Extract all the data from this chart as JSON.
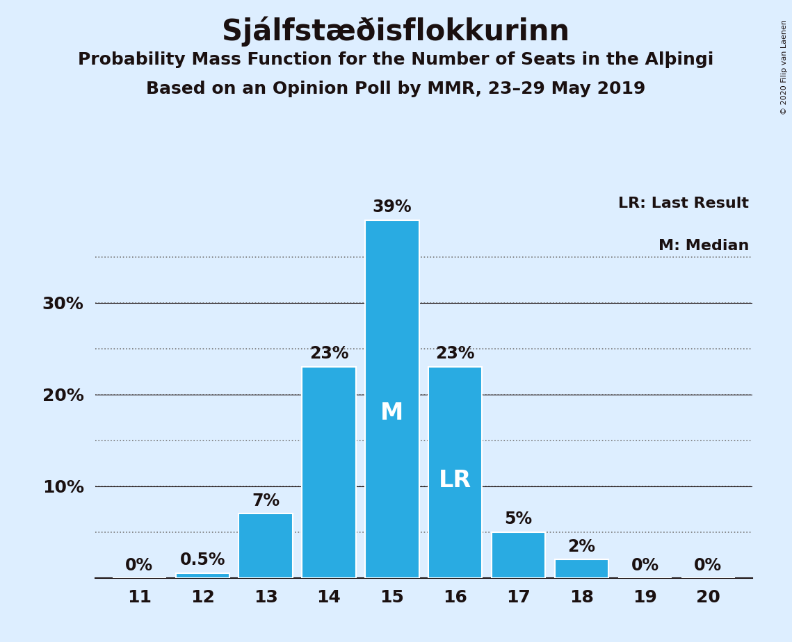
{
  "title": "Sjálfstæðisflokkurinn",
  "subtitle1": "Probability Mass Function for the Number of Seats in the Alþingi",
  "subtitle2": "Based on an Opinion Poll by MMR, 23–29 May 2019",
  "copyright": "© 2020 Filip van Laenen",
  "seats": [
    11,
    12,
    13,
    14,
    15,
    16,
    17,
    18,
    19,
    20
  ],
  "values": [
    0.0,
    0.5,
    7.0,
    23.0,
    39.0,
    23.0,
    5.0,
    2.0,
    0.0,
    0.0
  ],
  "labels": [
    "0%",
    "0.5%",
    "7%",
    "23%",
    "39%",
    "23%",
    "5%",
    "2%",
    "0%",
    "0%"
  ],
  "bar_color": "#29ABE2",
  "background_color": "#DDEEFF",
  "bar_edge_color": "#FFFFFF",
  "text_color": "#1A1010",
  "label_color_inside": "#FFFFFF",
  "label_color_outside": "#1A1010",
  "median_seat": 15,
  "lr_seat": 16,
  "median_label": "M",
  "lr_label": "LR",
  "legend_lr": "LR: Last Result",
  "legend_m": "M: Median",
  "ylim": [
    0,
    42
  ],
  "grid_yticks": [
    5,
    10,
    15,
    20,
    25,
    30,
    35
  ],
  "label_yticks": [
    10,
    20,
    30
  ],
  "label_ytick_labels": [
    "10%",
    "20%",
    "30%"
  ],
  "grid_color": "#777777",
  "title_fontsize": 30,
  "subtitle_fontsize": 18,
  "bar_label_fontsize": 17,
  "axis_fontsize": 18,
  "inside_label_fontsize": 24,
  "legend_fontsize": 16
}
